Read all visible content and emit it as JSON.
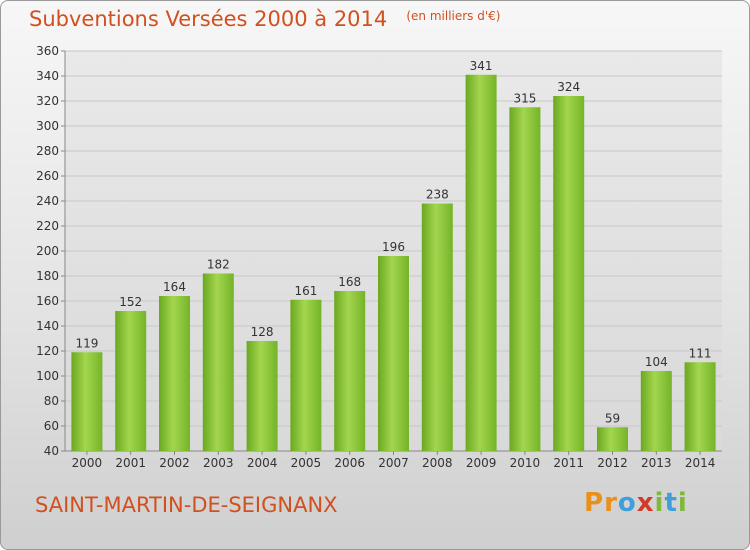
{
  "header": {
    "title": "Subventions Versées 2000 à 2014",
    "unit_note": "(en milliers d'€)"
  },
  "footer": {
    "commune": "SAINT-MARTIN-DE-SEIGNANX",
    "logo_letters": [
      "P",
      "r",
      "o",
      "x",
      "i",
      "t",
      "i"
    ],
    "logo_colors": [
      "#e8901a",
      "#e8901a",
      "#3f9fd8",
      "#d23a2a",
      "#7fb93a",
      "#3f9fd8",
      "#7fb93a"
    ]
  },
  "chart_data": {
    "type": "bar",
    "title": "Subventions Versées 2000 à 2014",
    "subtitle": "(en milliers d'€)",
    "categories": [
      "2000",
      "2001",
      "2002",
      "2003",
      "2004",
      "2005",
      "2006",
      "2007",
      "2008",
      "2009",
      "2010",
      "2011",
      "2012",
      "2013",
      "2014"
    ],
    "values": [
      119,
      152,
      164,
      182,
      128,
      161,
      168,
      196,
      238,
      341,
      315,
      324,
      59,
      104,
      111
    ],
    "ylim": [
      40,
      360
    ],
    "yticks": [
      40,
      60,
      80,
      100,
      120,
      140,
      160,
      180,
      200,
      220,
      240,
      260,
      280,
      300,
      320,
      340,
      360
    ],
    "grid": true,
    "bar_color": "#7dbb2e",
    "bar_highlight": "#a3d64e",
    "grid_color": "#c8c8c8",
    "title_color": "#d2501e"
  }
}
